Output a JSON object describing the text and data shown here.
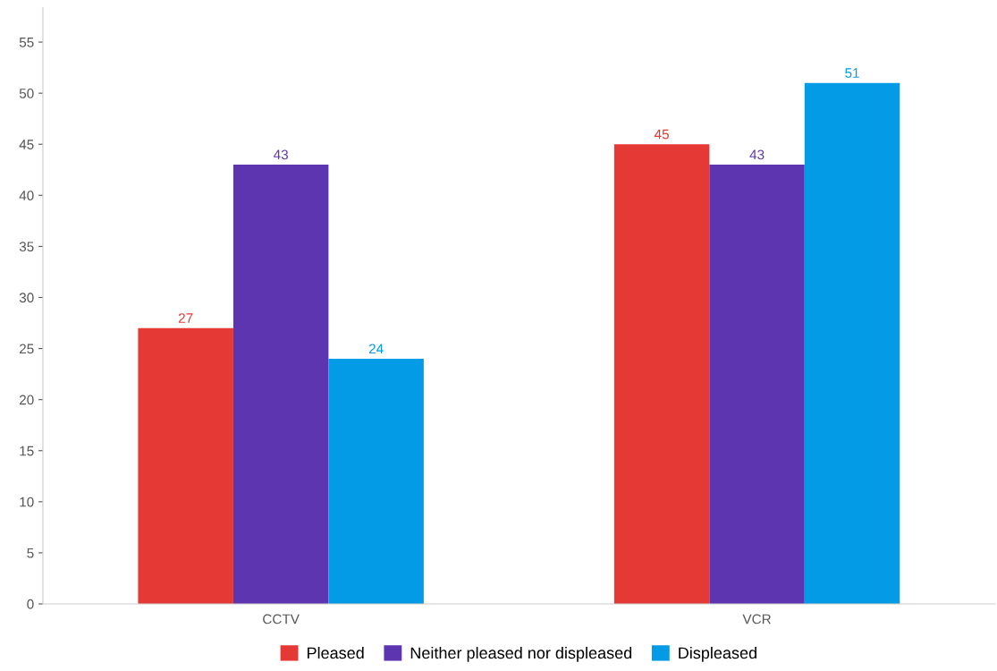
{
  "chart_data": {
    "type": "bar",
    "categories": [
      "CCTV",
      "VCR"
    ],
    "series": [
      {
        "name": "Pleased",
        "color": "#e53935",
        "values": [
          27,
          45
        ]
      },
      {
        "name": "Neither pleased nor displeased",
        "color": "#5e35b1",
        "values": [
          43,
          43
        ]
      },
      {
        "name": "Displeased",
        "color": "#039be5",
        "values": [
          24,
          51
        ]
      }
    ],
    "ylim": [
      0,
      58.4
    ],
    "yticks": [
      0,
      5,
      10,
      15,
      20,
      25,
      30,
      35,
      40,
      45,
      50,
      55
    ],
    "data_labels": true,
    "grid": false,
    "legend": "bottom"
  }
}
